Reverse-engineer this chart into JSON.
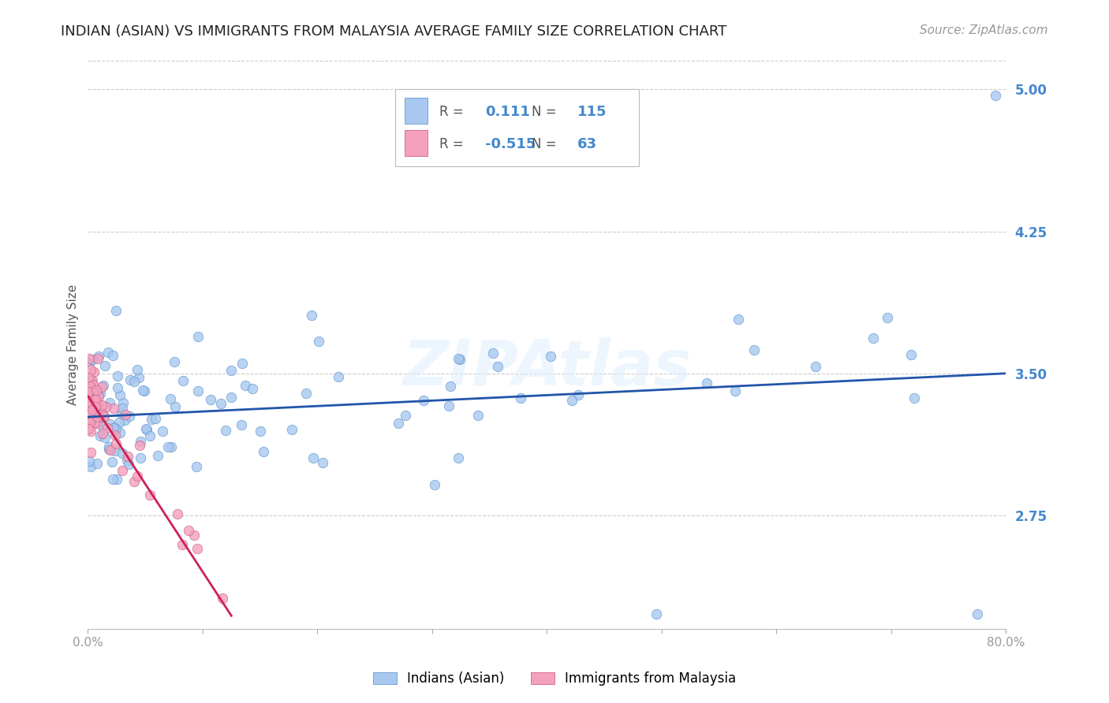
{
  "title": "INDIAN (ASIAN) VS IMMIGRANTS FROM MALAYSIA AVERAGE FAMILY SIZE CORRELATION CHART",
  "source": "Source: ZipAtlas.com",
  "ylabel": "Average Family Size",
  "xlim": [
    0.0,
    0.8
  ],
  "ylim": [
    2.15,
    5.15
  ],
  "yticks": [
    2.75,
    3.5,
    4.25,
    5.0
  ],
  "xticks": [
    0.0,
    0.1,
    0.2,
    0.3,
    0.4,
    0.5,
    0.6,
    0.7,
    0.8
  ],
  "xticklabels": [
    "0.0%",
    "",
    "",
    "",
    "",
    "",
    "",
    "",
    "80.0%"
  ],
  "watermark": "ZIPAtlas",
  "blue_color": "#A8C8F0",
  "pink_color": "#F4A0BE",
  "blue_edge": "#6699CC",
  "pink_edge": "#CC6688",
  "trend_blue": "#2255AA",
  "trend_pink": "#CC2255",
  "legend_R_blue": "0.111",
  "legend_N_blue": "115",
  "legend_R_pink": "-0.515",
  "legend_N_pink": "63",
  "legend_label_blue": "Indians (Asian)",
  "legend_label_pink": "Immigrants from Malaysia",
  "blue_trend_x": [
    0.0,
    0.8
  ],
  "blue_trend_y": [
    3.27,
    3.5
  ],
  "pink_trend_x": [
    0.0,
    0.125
  ],
  "pink_trend_y": [
    3.38,
    2.22
  ],
  "title_fontsize": 13,
  "source_fontsize": 11,
  "axis_label_fontsize": 11,
  "tick_fontsize": 11,
  "marker_size": 80,
  "background_color": "#FFFFFF",
  "grid_color": "#CCCCCC",
  "ytick_color": "#4488CC",
  "xtick_color": "#999999"
}
